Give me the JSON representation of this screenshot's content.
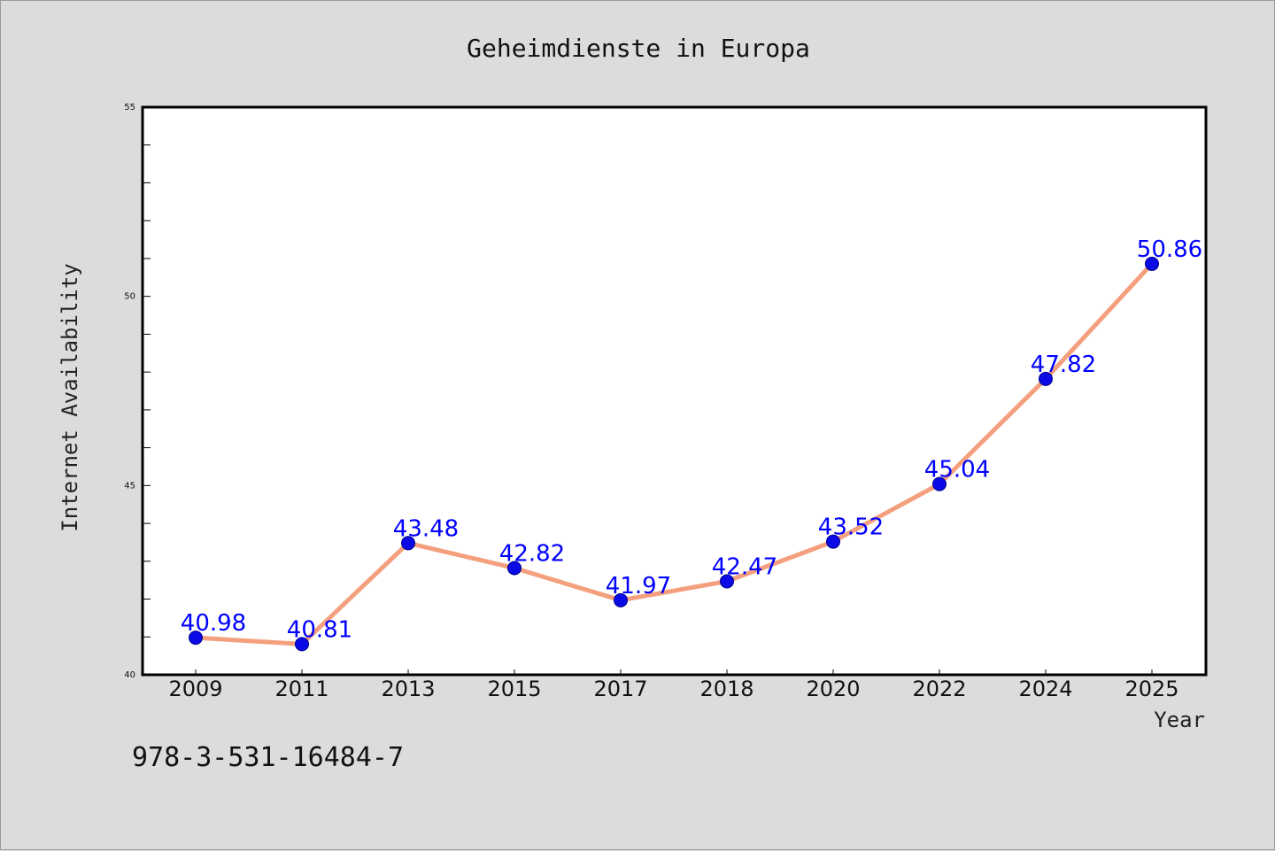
{
  "chart_data": {
    "type": "line",
    "title": "Geheimdienste in Europa",
    "xlabel": "Year",
    "ylabel": "Internet Availability",
    "categories": [
      "2009",
      "2011",
      "2013",
      "2015",
      "2017",
      "2018",
      "2020",
      "2022",
      "2024",
      "2025"
    ],
    "series": [
      {
        "values": [
          40.98,
          40.81,
          43.48,
          42.82,
          41.97,
          42.47,
          43.52,
          45.04,
          47.82,
          50.86
        ],
        "labels": [
          "40.98",
          "40.81",
          "43.48",
          "42.82",
          "41.97",
          "42.47",
          "43.52",
          "45.04",
          "47.82",
          "50.86"
        ]
      }
    ],
    "ylim": [
      40,
      55
    ],
    "yticks": [
      "40",
      "45",
      "50",
      "55"
    ],
    "grid": false,
    "legend": "none",
    "colors": {
      "line": "#f4a07e",
      "marker": "#0a0ae6",
      "data_label": "#0000ff",
      "plot_background": "#ffffff",
      "page_background": "#dcdcdc"
    }
  },
  "footer": {
    "isbn": "978-3-531-16484-7"
  }
}
